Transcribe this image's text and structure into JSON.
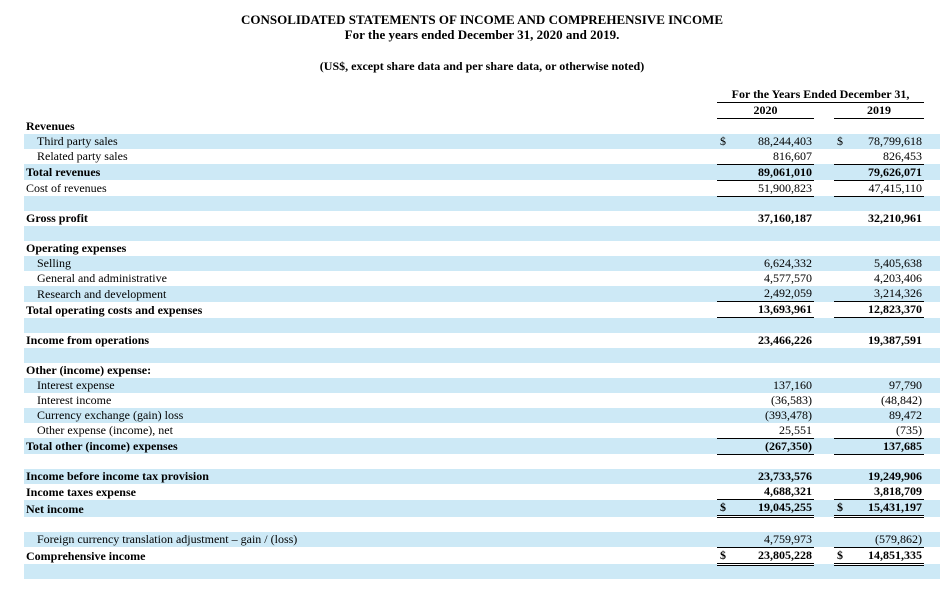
{
  "title": {
    "line1": "CONSOLIDATED STATEMENTS OF INCOME AND COMPREHENSIVE INCOME",
    "line2": "For the years ended December 31, 2020 and 2019.",
    "line3": "(US$, except share data and per share data, or otherwise noted)"
  },
  "table": {
    "period_header": "For the Years Ended December 31,",
    "col_2020": "2020",
    "col_2019": "2019",
    "stripe_color": "#cde9f6",
    "rows": [
      {
        "label": "Revenues",
        "bold": true
      },
      {
        "label": "Third party sales",
        "indent": true,
        "dollar": true,
        "v2020": "88,244,403",
        "v2019": "78,799,618"
      },
      {
        "label": "Related party sales",
        "indent": true,
        "v2020": "816,607",
        "v2019": "826,453",
        "u": "single"
      },
      {
        "label": "Total revenues",
        "bold": true,
        "v2020": "89,061,010",
        "v2019": "79,626,071",
        "u": "single"
      },
      {
        "label": "Cost of revenues",
        "v2020": "51,900,823",
        "v2019": "47,415,110",
        "u": "single"
      },
      {
        "blank": true
      },
      {
        "label": "Gross profit",
        "bold": true,
        "v2020": "37,160,187",
        "v2019": "32,210,961"
      },
      {
        "blank": true
      },
      {
        "label": "Operating expenses",
        "bold": true
      },
      {
        "label": "Selling",
        "indent": true,
        "v2020": "6,624,332",
        "v2019": "5,405,638"
      },
      {
        "label": "General and administrative",
        "indent": true,
        "v2020": "4,577,570",
        "v2019": "4,203,406"
      },
      {
        "label": "Research and development",
        "indent": true,
        "v2020": "2,492,059",
        "v2019": "3,214,326",
        "u": "single"
      },
      {
        "label": "Total operating costs and expenses",
        "bold": true,
        "v2020": "13,693,961",
        "v2019": "12,823,370",
        "u": "single"
      },
      {
        "blank": true
      },
      {
        "label": "Income from operations",
        "bold": true,
        "v2020": "23,466,226",
        "v2019": "19,387,591"
      },
      {
        "blank": true
      },
      {
        "label": "Other (income) expense:",
        "bold": true
      },
      {
        "label": "Interest expense",
        "indent": true,
        "v2020": "137,160",
        "v2019": "97,790"
      },
      {
        "label": "Interest income",
        "indent": true,
        "v2020": "(36,583)",
        "v2019": "(48,842)"
      },
      {
        "label": "Currency exchange (gain) loss",
        "indent": true,
        "v2020": "(393,478)",
        "v2019": "89,472"
      },
      {
        "label": "Other expense (income), net",
        "indent": true,
        "v2020": "25,551",
        "v2019": "(735)",
        "u": "single"
      },
      {
        "label": "Total other (income) expenses",
        "bold": true,
        "v2020": "(267,350)",
        "v2019": "137,685",
        "u": "single"
      },
      {
        "blank": true
      },
      {
        "label": "Income before income tax provision",
        "bold": true,
        "v2020": "23,733,576",
        "v2019": "19,249,906"
      },
      {
        "label": "Income taxes expense",
        "bold": true,
        "v2020": "4,688,321",
        "v2019": "3,818,709",
        "u": "single"
      },
      {
        "label": "Net income",
        "bold": true,
        "dollar": true,
        "v2020": "19,045,255",
        "v2019": "15,431,197",
        "u": "double"
      },
      {
        "blank": true
      },
      {
        "label": "Foreign currency translation adjustment – gain / (loss)",
        "indent": true,
        "v2020": "4,759,973",
        "v2019": "(579,862)",
        "u": "single"
      },
      {
        "label": "Comprehensive income",
        "bold": true,
        "dollar": true,
        "v2020": "23,805,228",
        "v2019": "14,851,335",
        "u": "double"
      },
      {
        "blank": true
      }
    ]
  }
}
